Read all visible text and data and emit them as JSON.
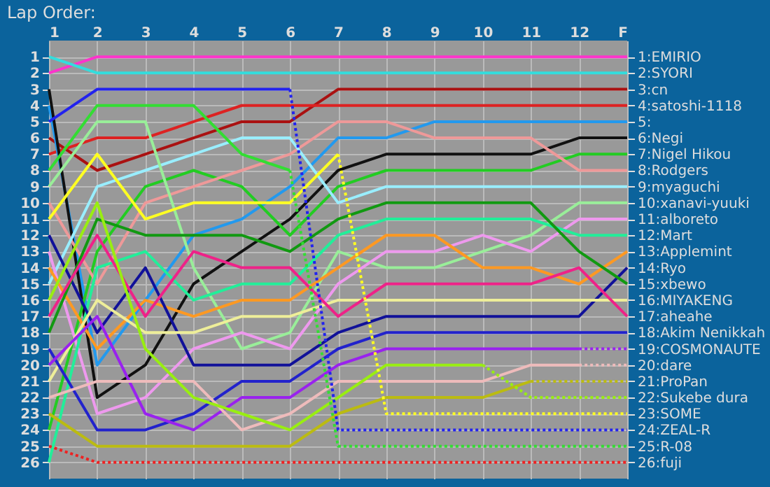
{
  "chart_data": {
    "type": "line",
    "title": "Lap Order:",
    "x": [
      1,
      2,
      3,
      4,
      5,
      6,
      7,
      8,
      9,
      10,
      11,
      12,
      13
    ],
    "xlim": [
      1,
      13
    ],
    "xticks": [
      1,
      2,
      3,
      4,
      5,
      6,
      7,
      8,
      9,
      10,
      11,
      12,
      {
        "value": 13,
        "label": "F"
      }
    ],
    "ylim": [
      27,
      0
    ],
    "yticks": [
      1,
      2,
      3,
      4,
      5,
      6,
      7,
      8,
      9,
      10,
      11,
      12,
      13,
      14,
      15,
      16,
      17,
      18,
      19,
      20,
      21,
      22,
      23,
      24,
      25,
      26
    ],
    "y2lim": [
      27,
      0
    ],
    "y2ticks": [
      {
        "value": 1,
        "label": "1:EMIRIO"
      },
      {
        "value": 2,
        "label": "2:SYORI"
      },
      {
        "value": 3,
        "label": "3:cn"
      },
      {
        "value": 4,
        "label": "4:satoshi-1118"
      },
      {
        "value": 5,
        "label": "5:"
      },
      {
        "value": 6,
        "label": "6:Negi"
      },
      {
        "value": 7,
        "label": "7:Nigel Hikou"
      },
      {
        "value": 8,
        "label": "8:Rodgers"
      },
      {
        "value": 9,
        "label": "9:myaguchi"
      },
      {
        "value": 10,
        "label": "10:xanavi-yuuki"
      },
      {
        "value": 11,
        "label": "11:alboreto"
      },
      {
        "value": 12,
        "label": "12:Mart"
      },
      {
        "value": 13,
        "label": "13:Applemint"
      },
      {
        "value": 14,
        "label": "14:Ryo"
      },
      {
        "value": 15,
        "label": "15:xbewo"
      },
      {
        "value": 16,
        "label": "16:MIYAKENG"
      },
      {
        "value": 17,
        "label": "17:aheahe"
      },
      {
        "value": 18,
        "label": "18:Akim Nenikkah"
      },
      {
        "value": 19,
        "label": "19:COSMONAUTE"
      },
      {
        "value": 20,
        "label": "20:dare"
      },
      {
        "value": 21,
        "label": "21:ProPan"
      },
      {
        "value": 22,
        "label": "22:Sukebe dura"
      },
      {
        "value": 23,
        "label": "23:SOME"
      },
      {
        "value": 24,
        "label": "24:ZEAL-R"
      },
      {
        "value": 25,
        "label": "25:R-08"
      },
      {
        "value": 26,
        "label": "26:fuji"
      }
    ],
    "grid": true,
    "legend": false,
    "marker": "none",
    "series": [
      {
        "color": "#ff33cc",
        "values": [
          2,
          1,
          1,
          1,
          1,
          1,
          1,
          1,
          1,
          1,
          1,
          1,
          1
        ]
      },
      {
        "color": "#33dddd",
        "values": [
          1,
          2,
          2,
          2,
          2,
          2,
          2,
          2,
          2,
          2,
          2,
          2,
          2
        ]
      },
      {
        "color": "#aa1111",
        "values": [
          6,
          8,
          7,
          6,
          5,
          5,
          3,
          3,
          3,
          3,
          3,
          3,
          3
        ]
      },
      {
        "color": "#dd2222",
        "values": [
          7,
          6,
          6,
          5,
          4,
          4,
          4,
          4,
          4,
          4,
          4,
          4,
          4
        ]
      },
      {
        "color": "#2299ee",
        "values": [
          4,
          20,
          16,
          12,
          11,
          9,
          6,
          6,
          5,
          5,
          5,
          5,
          5
        ]
      },
      {
        "color": "#111111",
        "values": [
          3,
          22,
          20,
          15,
          13,
          11,
          8,
          7,
          7,
          7,
          7,
          6,
          6
        ]
      },
      {
        "color": "#22cc22",
        "values": [
          24,
          13,
          9,
          8,
          9,
          12,
          9,
          8,
          8,
          8,
          8,
          7,
          7
        ]
      },
      {
        "color": "#ee9999",
        "values": [
          10,
          15,
          10,
          9,
          8,
          7,
          5,
          5,
          6,
          6,
          6,
          8,
          8
        ]
      },
      {
        "color": "#99eeff",
        "values": [
          15,
          9,
          8,
          7,
          6,
          6,
          10,
          9,
          9,
          9,
          9,
          9,
          9
        ]
      },
      {
        "color": "#99ee99",
        "values": [
          9,
          5,
          5,
          14,
          19,
          18,
          13,
          14,
          14,
          13,
          12,
          10,
          10
        ]
      },
      {
        "color": "#ee99ee",
        "values": [
          13,
          23,
          22,
          19,
          18,
          19,
          15,
          13,
          13,
          12,
          13,
          11,
          11
        ]
      },
      {
        "color": "#22ee99",
        "values": [
          26,
          14,
          13,
          16,
          15,
          15,
          12,
          11,
          11,
          11,
          11,
          12,
          12
        ]
      },
      {
        "color": "#ff9922",
        "values": [
          14,
          19,
          16,
          17,
          16,
          16,
          14,
          12,
          12,
          14,
          14,
          15,
          13
        ]
      },
      {
        "color": "#111199",
        "values": [
          12,
          18,
          14,
          20,
          20,
          20,
          18,
          17,
          17,
          17,
          17,
          17,
          14
        ]
      },
      {
        "color": "#119911",
        "values": [
          18,
          11,
          12,
          12,
          12,
          13,
          11,
          10,
          10,
          10,
          10,
          13,
          15
        ]
      },
      {
        "color": "#eeee99",
        "values": [
          21,
          16,
          18,
          18,
          17,
          17,
          16,
          16,
          16,
          16,
          16,
          16,
          16
        ]
      },
      {
        "color": "#ee2288",
        "values": [
          17,
          12,
          17,
          13,
          14,
          14,
          17,
          15,
          15,
          15,
          15,
          14,
          17
        ]
      },
      {
        "color": "#2222cc",
        "values": [
          19,
          24,
          24,
          23,
          21,
          21,
          19,
          18,
          18,
          18,
          18,
          18,
          18
        ]
      },
      {
        "color": "#9922ee",
        "values": [
          20,
          17,
          23,
          24,
          22,
          22,
          20,
          19,
          19,
          19,
          19,
          19,
          null
        ]
      },
      {
        "color": "#9922ee",
        "line_style": "dotted",
        "values": [
          null,
          null,
          null,
          null,
          null,
          null,
          null,
          null,
          null,
          null,
          null,
          19,
          19
        ]
      },
      {
        "color": "#eebbbb",
        "values": [
          22,
          21,
          21,
          21,
          24,
          23,
          21,
          21,
          21,
          21,
          20,
          20,
          null
        ]
      },
      {
        "color": "#eebbbb",
        "line_style": "dotted",
        "values": [
          null,
          null,
          null,
          null,
          null,
          null,
          null,
          null,
          null,
          null,
          null,
          20,
          20
        ]
      },
      {
        "color": "#bbbb11",
        "values": [
          23,
          25,
          25,
          25,
          25,
          25,
          23,
          22,
          22,
          22,
          21,
          null,
          null
        ]
      },
      {
        "color": "#bbbb11",
        "line_style": "dotted",
        "values": [
          null,
          null,
          null,
          null,
          null,
          null,
          null,
          null,
          null,
          null,
          21,
          21,
          21
        ]
      },
      {
        "color": "#99ee11",
        "values": [
          16,
          10,
          19,
          22,
          23,
          24,
          22,
          20,
          20,
          20,
          null,
          null,
          null
        ]
      },
      {
        "color": "#99ee11",
        "line_style": "dotted",
        "values": [
          null,
          null,
          null,
          null,
          null,
          null,
          null,
          null,
          null,
          20,
          22,
          22,
          22
        ]
      },
      {
        "color": "#ffff22",
        "values": [
          11,
          7,
          11,
          10,
          10,
          10,
          7,
          null,
          null,
          null,
          null,
          null,
          null
        ]
      },
      {
        "color": "#ffff22",
        "line_style": "dotted",
        "values": [
          null,
          null,
          null,
          null,
          null,
          null,
          7,
          23,
          23,
          23,
          23,
          23,
          23
        ]
      },
      {
        "color": "#2222ee",
        "values": [
          5,
          3,
          3,
          3,
          3,
          3,
          null,
          null,
          null,
          null,
          null,
          null,
          null
        ]
      },
      {
        "color": "#2222ee",
        "line_style": "dotted",
        "values": [
          null,
          null,
          null,
          null,
          null,
          3,
          24,
          24,
          24,
          24,
          24,
          24,
          24
        ]
      },
      {
        "color": "#33dd33",
        "values": [
          8,
          4,
          4,
          4,
          7,
          8,
          null,
          null,
          null,
          null,
          null,
          null,
          null
        ]
      },
      {
        "color": "#33dd33",
        "line_style": "dotted",
        "values": [
          null,
          null,
          null,
          null,
          null,
          8,
          25,
          25,
          25,
          25,
          25,
          25,
          25
        ]
      },
      {
        "color": "#ee2222",
        "line_style": "dotted",
        "values": [
          25,
          26,
          26,
          26,
          26,
          26,
          26,
          26,
          26,
          26,
          26,
          26,
          26
        ]
      }
    ]
  }
}
